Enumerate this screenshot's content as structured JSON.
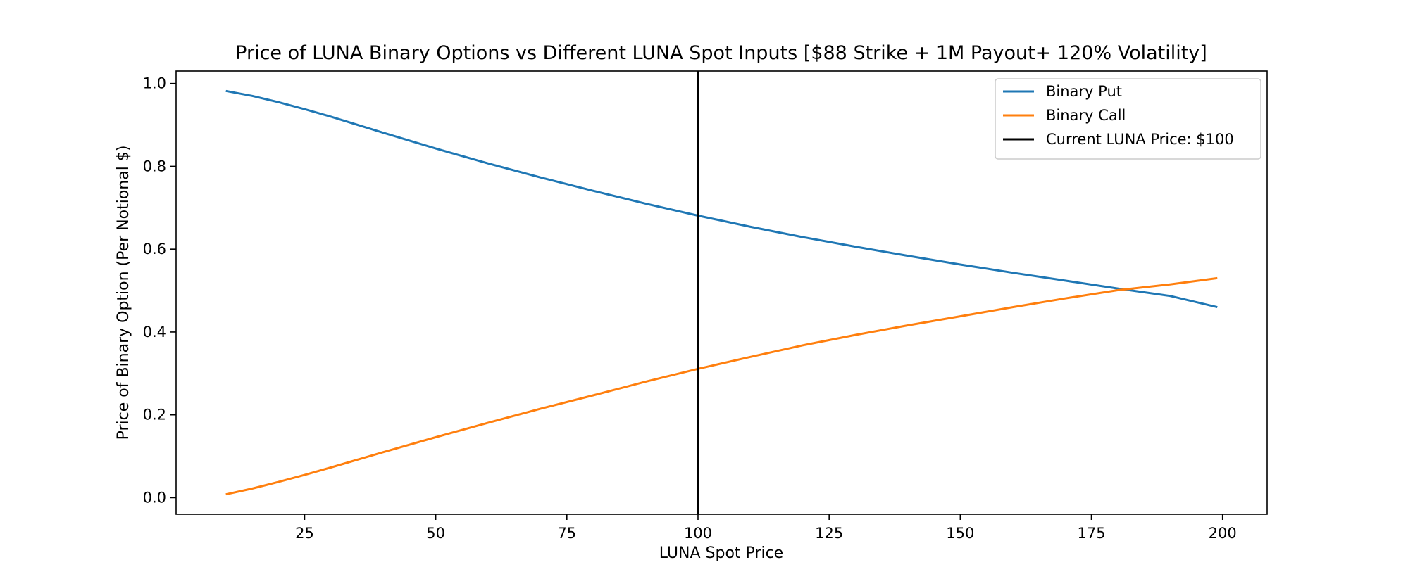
{
  "chart_data": {
    "type": "line",
    "title": "Price of LUNA Binary Options vs Different LUNA Spot Inputs [$88 Strike + 1M Payout+ 120% Volatility]",
    "xlabel": "LUNA Spot Price",
    "ylabel": "Price of Binary Option (Per Notional $)",
    "xlim": [
      0.5,
      208.5
    ],
    "ylim": [
      -0.04,
      1.03
    ],
    "xticks": [
      25,
      50,
      75,
      100,
      125,
      150,
      175,
      200
    ],
    "yticks": [
      0.0,
      0.2,
      0.4,
      0.6,
      0.8,
      1.0
    ],
    "xtick_labels": [
      "25",
      "50",
      "75",
      "100",
      "125",
      "150",
      "175",
      "200"
    ],
    "ytick_labels": [
      "0.0",
      "0.2",
      "0.4",
      "0.6",
      "0.8",
      "1.0"
    ],
    "grid": false,
    "legend_position": "top-right",
    "series": [
      {
        "name": "Binary Put",
        "color": "#1f77b4",
        "x": [
          10,
          15,
          20,
          25,
          30,
          40,
          50,
          60,
          70,
          80,
          90,
          100,
          110,
          120,
          130,
          140,
          150,
          160,
          170,
          180,
          190,
          199
        ],
        "y": [
          0.982,
          0.97,
          0.955,
          0.938,
          0.92,
          0.881,
          0.843,
          0.807,
          0.773,
          0.741,
          0.71,
          0.681,
          0.654,
          0.629,
          0.606,
          0.584,
          0.563,
          0.543,
          0.524,
          0.505,
          0.487,
          0.46
        ]
      },
      {
        "name": "Binary Call",
        "color": "#ff7f0e",
        "x": [
          10,
          15,
          20,
          25,
          30,
          40,
          50,
          60,
          70,
          80,
          90,
          100,
          110,
          120,
          130,
          140,
          150,
          160,
          170,
          180,
          190,
          199
        ],
        "y": [
          0.008,
          0.022,
          0.038,
          0.055,
          0.073,
          0.11,
          0.146,
          0.181,
          0.215,
          0.247,
          0.28,
          0.311,
          0.34,
          0.368,
          0.393,
          0.416,
          0.438,
          0.46,
          0.481,
          0.501,
          0.515,
          0.53
        ]
      }
    ],
    "vline": {
      "name": "Current LUNA Price: $100",
      "x": 100,
      "color": "#000000"
    }
  }
}
